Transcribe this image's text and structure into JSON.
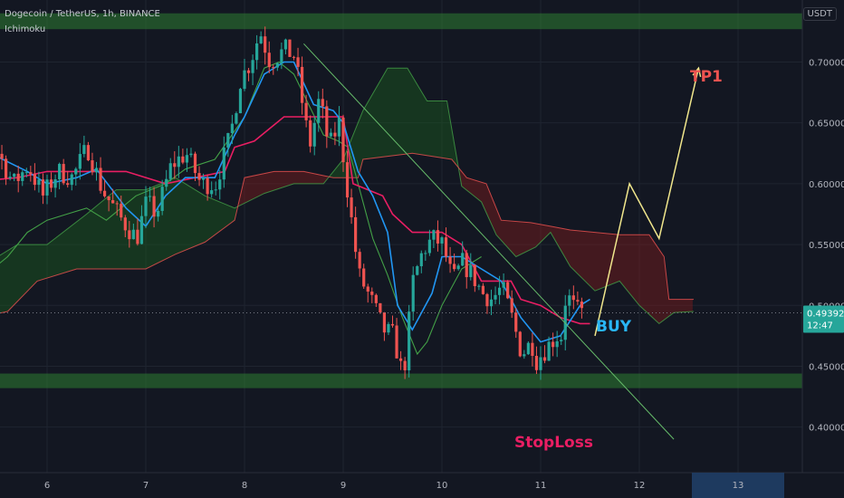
{
  "header": {
    "title": "Dogecoin / TetherUS, 1h, BINANCE",
    "indicator": "Ichimoku",
    "unit_button": "USDT"
  },
  "annotations": {
    "tp1": "TP1",
    "buy": "BUY",
    "stoploss": "StopLoss"
  },
  "price_tag": {
    "price": "0.49392",
    "countdown": "12:47"
  },
  "colors": {
    "background": "#131722",
    "up": "#26a69a",
    "down": "#ef5350",
    "tenkan": "#2196f3",
    "kijun": "#e91e63",
    "lagging": "#43a047",
    "cloud_bull": "#1b5e20",
    "cloud_bear": "#7f1d1d",
    "zone": "#2e7d32",
    "target_path": "#f0e68c",
    "trendline": "#66bb6a",
    "tp1_label": "#ef5350",
    "buy_label": "#29b6f6",
    "stoploss_label": "#e91e63",
    "price_tag_bg": "#26a69a"
  },
  "chart_data": {
    "type": "candlestick",
    "x_axis": {
      "labels": [
        "6",
        "7",
        "8",
        "9",
        "10",
        "11",
        "12",
        "13"
      ],
      "highlighted": "13"
    },
    "y_axis": {
      "range": [
        0.37,
        0.745
      ],
      "tick_labels": [
        "0.70000",
        "0.65000",
        "0.60000",
        "0.55000",
        "0.50000",
        "0.45000",
        "0.40000"
      ]
    },
    "zones": [
      {
        "name": "resistance",
        "from": 0.727,
        "to": 0.74
      },
      {
        "name": "support",
        "from": 0.432,
        "to": 0.444
      }
    ],
    "candle_path": [
      [
        5.0,
        0.6
      ],
      [
        5.12,
        0.645
      ],
      [
        5.25,
        0.585
      ],
      [
        5.4,
        0.64
      ],
      [
        5.55,
        0.625
      ],
      [
        5.7,
        0.6
      ],
      [
        5.85,
        0.615
      ],
      [
        6.0,
        0.59
      ],
      [
        6.15,
        0.61
      ],
      [
        6.3,
        0.605
      ],
      [
        6.45,
        0.63
      ],
      [
        6.6,
        0.595
      ],
      [
        6.8,
        0.57
      ],
      [
        6.95,
        0.555
      ],
      [
        7.05,
        0.585
      ],
      [
        7.15,
        0.575
      ],
      [
        7.3,
        0.615
      ],
      [
        7.45,
        0.625
      ],
      [
        7.6,
        0.6
      ],
      [
        7.75,
        0.6
      ],
      [
        7.9,
        0.64
      ],
      [
        8.0,
        0.685
      ],
      [
        8.1,
        0.7
      ],
      [
        8.2,
        0.725
      ],
      [
        8.3,
        0.7
      ],
      [
        8.45,
        0.71
      ],
      [
        8.55,
        0.705
      ],
      [
        8.7,
        0.63
      ],
      [
        8.8,
        0.67
      ],
      [
        8.9,
        0.63
      ],
      [
        9.0,
        0.65
      ],
      [
        9.1,
        0.585
      ],
      [
        9.2,
        0.525
      ],
      [
        9.35,
        0.5
      ],
      [
        9.45,
        0.48
      ],
      [
        9.55,
        0.475
      ],
      [
        9.65,
        0.44
      ],
      [
        9.75,
        0.52
      ],
      [
        9.85,
        0.545
      ],
      [
        9.95,
        0.555
      ],
      [
        10.05,
        0.55
      ],
      [
        10.15,
        0.52
      ],
      [
        10.25,
        0.535
      ],
      [
        10.35,
        0.525
      ],
      [
        10.45,
        0.51
      ],
      [
        10.55,
        0.505
      ],
      [
        10.65,
        0.515
      ],
      [
        10.75,
        0.49
      ],
      [
        10.85,
        0.46
      ],
      [
        10.95,
        0.47
      ],
      [
        11.0,
        0.455
      ],
      [
        11.1,
        0.465
      ],
      [
        11.2,
        0.475
      ],
      [
        11.25,
        0.475
      ],
      [
        11.3,
        0.51
      ],
      [
        11.4,
        0.495
      ],
      [
        11.45,
        0.494
      ]
    ],
    "tenkan_sen": [
      [
        5.0,
        0.6
      ],
      [
        5.3,
        0.61
      ],
      [
        5.5,
        0.622
      ],
      [
        5.8,
        0.61
      ],
      [
        6.0,
        0.6
      ],
      [
        6.3,
        0.605
      ],
      [
        6.5,
        0.612
      ],
      [
        6.8,
        0.58
      ],
      [
        7.0,
        0.565
      ],
      [
        7.2,
        0.59
      ],
      [
        7.4,
        0.605
      ],
      [
        7.7,
        0.605
      ],
      [
        7.9,
        0.64
      ],
      [
        8.0,
        0.655
      ],
      [
        8.2,
        0.69
      ],
      [
        8.4,
        0.7
      ],
      [
        8.5,
        0.7
      ],
      [
        8.7,
        0.665
      ],
      [
        8.9,
        0.66
      ],
      [
        9.0,
        0.65
      ],
      [
        9.15,
        0.61
      ],
      [
        9.3,
        0.59
      ],
      [
        9.45,
        0.56
      ],
      [
        9.55,
        0.5
      ],
      [
        9.7,
        0.48
      ],
      [
        9.9,
        0.51
      ],
      [
        10.0,
        0.54
      ],
      [
        10.2,
        0.54
      ],
      [
        10.4,
        0.53
      ],
      [
        10.6,
        0.52
      ],
      [
        10.8,
        0.49
      ],
      [
        11.0,
        0.47
      ],
      [
        11.2,
        0.475
      ],
      [
        11.4,
        0.5
      ],
      [
        11.5,
        0.505
      ]
    ],
    "kijun_sen": [
      [
        5.0,
        0.6
      ],
      [
        5.7,
        0.605
      ],
      [
        6.0,
        0.61
      ],
      [
        6.8,
        0.61
      ],
      [
        7.2,
        0.6
      ],
      [
        7.5,
        0.605
      ],
      [
        7.8,
        0.61
      ],
      [
        7.9,
        0.63
      ],
      [
        8.1,
        0.635
      ],
      [
        8.4,
        0.655
      ],
      [
        8.6,
        0.655
      ],
      [
        9.0,
        0.655
      ],
      [
        9.1,
        0.6
      ],
      [
        9.4,
        0.59
      ],
      [
        9.5,
        0.575
      ],
      [
        9.7,
        0.56
      ],
      [
        10.0,
        0.56
      ],
      [
        10.2,
        0.55
      ],
      [
        10.4,
        0.52
      ],
      [
        10.7,
        0.52
      ],
      [
        10.8,
        0.505
      ],
      [
        11.0,
        0.5
      ],
      [
        11.2,
        0.49
      ],
      [
        11.4,
        0.485
      ],
      [
        11.5,
        0.485
      ]
    ],
    "lagging_span": [
      [
        5.0,
        0.51
      ],
      [
        5.3,
        0.52
      ],
      [
        5.6,
        0.54
      ],
      [
        5.8,
        0.56
      ],
      [
        6.0,
        0.57
      ],
      [
        6.2,
        0.575
      ],
      [
        6.4,
        0.58
      ],
      [
        6.6,
        0.57
      ],
      [
        6.9,
        0.59
      ],
      [
        7.2,
        0.6
      ],
      [
        7.4,
        0.612
      ],
      [
        7.7,
        0.62
      ],
      [
        8.0,
        0.655
      ],
      [
        8.2,
        0.695
      ],
      [
        8.35,
        0.7
      ],
      [
        8.5,
        0.69
      ],
      [
        8.65,
        0.665
      ],
      [
        8.8,
        0.64
      ],
      [
        8.95,
        0.635
      ],
      [
        9.05,
        0.63
      ],
      [
        9.15,
        0.6
      ],
      [
        9.3,
        0.555
      ],
      [
        9.45,
        0.525
      ],
      [
        9.6,
        0.49
      ],
      [
        9.75,
        0.46
      ],
      [
        9.85,
        0.47
      ],
      [
        10.0,
        0.5
      ],
      [
        10.2,
        0.53
      ],
      [
        10.4,
        0.54
      ]
    ],
    "senkou_span_a": [
      [
        5.0,
        0.5
      ],
      [
        5.2,
        0.515
      ],
      [
        5.5,
        0.54
      ],
      [
        5.7,
        0.55
      ],
      [
        6.0,
        0.55
      ],
      [
        6.4,
        0.575
      ],
      [
        6.7,
        0.595
      ],
      [
        7.0,
        0.595
      ],
      [
        7.3,
        0.605
      ],
      [
        7.6,
        0.59
      ],
      [
        7.9,
        0.58
      ],
      [
        8.2,
        0.592
      ],
      [
        8.5,
        0.6
      ],
      [
        8.8,
        0.6
      ],
      [
        9.0,
        0.62
      ],
      [
        9.2,
        0.66
      ],
      [
        9.45,
        0.695
      ],
      [
        9.65,
        0.695
      ],
      [
        9.85,
        0.668
      ],
      [
        10.05,
        0.668
      ],
      [
        10.2,
        0.598
      ],
      [
        10.4,
        0.585
      ],
      [
        10.55,
        0.558
      ],
      [
        10.75,
        0.54
      ],
      [
        10.95,
        0.548
      ],
      [
        11.1,
        0.56
      ],
      [
        11.3,
        0.532
      ],
      [
        11.55,
        0.512
      ],
      [
        11.8,
        0.52
      ],
      [
        12.0,
        0.5
      ],
      [
        12.2,
        0.485
      ],
      [
        12.35,
        0.494
      ],
      [
        12.55,
        0.495
      ]
    ],
    "senkou_span_b": [
      [
        5.0,
        0.485
      ],
      [
        5.3,
        0.49
      ],
      [
        5.6,
        0.495
      ],
      [
        5.9,
        0.52
      ],
      [
        6.3,
        0.53
      ],
      [
        6.7,
        0.53
      ],
      [
        7.0,
        0.53
      ],
      [
        7.3,
        0.542
      ],
      [
        7.6,
        0.552
      ],
      [
        7.9,
        0.57
      ],
      [
        8.0,
        0.605
      ],
      [
        8.3,
        0.61
      ],
      [
        8.6,
        0.61
      ],
      [
        8.9,
        0.605
      ],
      [
        9.15,
        0.605
      ],
      [
        9.2,
        0.62
      ],
      [
        9.7,
        0.625
      ],
      [
        10.1,
        0.62
      ],
      [
        10.25,
        0.605
      ],
      [
        10.45,
        0.6
      ],
      [
        10.6,
        0.57
      ],
      [
        10.9,
        0.568
      ],
      [
        11.1,
        0.565
      ],
      [
        11.3,
        0.562
      ],
      [
        11.8,
        0.558
      ],
      [
        12.1,
        0.558
      ],
      [
        12.25,
        0.54
      ],
      [
        12.3,
        0.505
      ],
      [
        12.55,
        0.505
      ]
    ],
    "trendline": [
      [
        8.6,
        0.715
      ],
      [
        12.35,
        0.39
      ]
    ],
    "target_path": [
      [
        11.55,
        0.475
      ],
      [
        11.9,
        0.6
      ],
      [
        12.2,
        0.555
      ],
      [
        12.6,
        0.695
      ]
    ],
    "last_price": 0.49392
  }
}
